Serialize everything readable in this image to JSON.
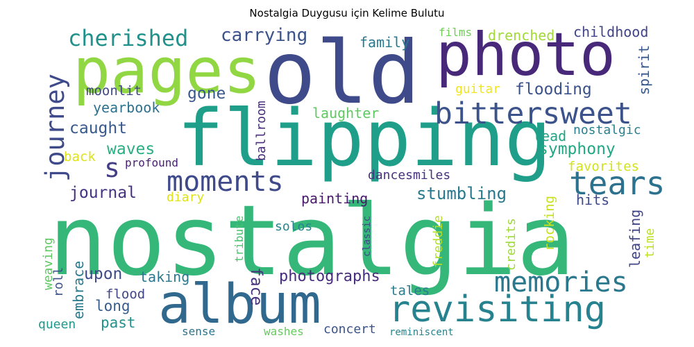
{
  "chart_data": {
    "type": "wordcloud",
    "title": "Nostalgia Duygusu için Kelime Bulutu",
    "colormap": "viridis",
    "words": [
      {
        "text": "nostalgia",
        "color": "#35b779"
      },
      {
        "text": "flipping",
        "color": "#1f9e89"
      },
      {
        "text": "old",
        "color": "#3e4a89"
      },
      {
        "text": "photo",
        "color": "#482878"
      },
      {
        "text": "pages",
        "color": "#90d743"
      },
      {
        "text": "album",
        "color": "#31688e"
      },
      {
        "text": "revisiting",
        "color": "#26828e"
      },
      {
        "text": "memories",
        "color": "#2a788e"
      },
      {
        "text": "bittersweet",
        "color": "#3b528b"
      },
      {
        "text": "tears",
        "color": "#2c728e"
      },
      {
        "text": "moments",
        "color": "#3e4a89"
      },
      {
        "text": "cherished",
        "color": "#21918c"
      },
      {
        "text": "journey",
        "color": "#3e4a89"
      },
      {
        "text": "s",
        "color": "#433e85"
      },
      {
        "text": "carrying",
        "color": "#3b528b"
      },
      {
        "text": "family",
        "color": "#2a788e"
      },
      {
        "text": "films",
        "color": "#6ece58"
      },
      {
        "text": "drenched",
        "color": "#a2da37"
      },
      {
        "text": "childhood",
        "color": "#414487"
      },
      {
        "text": "moonlit",
        "color": "#404688"
      },
      {
        "text": "gone",
        "color": "#38588c"
      },
      {
        "text": "ballroom",
        "color": "#472d7b"
      },
      {
        "text": "guitar",
        "color": "#f1e51d"
      },
      {
        "text": "flooding",
        "color": "#3b528b"
      },
      {
        "text": "spirit",
        "color": "#38588c"
      },
      {
        "text": "yearbook",
        "color": "#2c728e"
      },
      {
        "text": "laughter",
        "color": "#5ec962"
      },
      {
        "text": "caught",
        "color": "#38598c"
      },
      {
        "text": "lead",
        "color": "#20a386"
      },
      {
        "text": "nostalgic",
        "color": "#27808e"
      },
      {
        "text": "waves",
        "color": "#28ae80"
      },
      {
        "text": "symphony",
        "color": "#22a884"
      },
      {
        "text": "back",
        "color": "#dde318"
      },
      {
        "text": "profound",
        "color": "#482173"
      },
      {
        "text": "favorites",
        "color": "#d2e21b"
      },
      {
        "text": "dancesmiles",
        "color": "#46327e"
      },
      {
        "text": "journal",
        "color": "#46337f"
      },
      {
        "text": "diary",
        "color": "#dde318"
      },
      {
        "text": "painting",
        "color": "#48186a"
      },
      {
        "text": "stumbling",
        "color": "#2a788e"
      },
      {
        "text": "rocking",
        "color": "#c8e020"
      },
      {
        "text": "hits",
        "color": "#3e4a89"
      },
      {
        "text": "freddie",
        "color": "#b5de2b"
      },
      {
        "text": "credits",
        "color": "#9fda3a"
      },
      {
        "text": "leafing",
        "color": "#414487"
      },
      {
        "text": "time",
        "color": "#bddf26"
      },
      {
        "text": "tribute",
        "color": "#4ac16d"
      },
      {
        "text": "solos",
        "color": "#25848e"
      },
      {
        "text": "classic",
        "color": "#414487"
      },
      {
        "text": "face",
        "color": "#46327e"
      },
      {
        "text": "weaving",
        "color": "#5ec962"
      },
      {
        "text": "embrace",
        "color": "#287c8e"
      },
      {
        "text": "upon",
        "color": "#3e4a89"
      },
      {
        "text": "taking",
        "color": "#2a788e"
      },
      {
        "text": "photographs",
        "color": "#472d7b"
      },
      {
        "text": "roll",
        "color": "#3b528b"
      },
      {
        "text": "flood",
        "color": "#404688"
      },
      {
        "text": "long",
        "color": "#365c8d"
      },
      {
        "text": "tales",
        "color": "#287c8e"
      },
      {
        "text": "queen",
        "color": "#1f9a8a"
      },
      {
        "text": "past",
        "color": "#21918c"
      },
      {
        "text": "sense",
        "color": "#2c728e"
      },
      {
        "text": "washes",
        "color": "#65cb5e"
      },
      {
        "text": "concert",
        "color": "#3b528b"
      },
      {
        "text": "reminiscent",
        "color": "#26828e"
      }
    ]
  }
}
